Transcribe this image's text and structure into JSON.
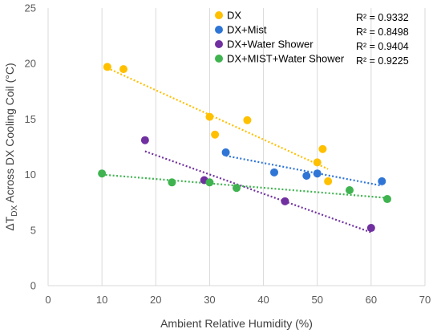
{
  "chart_data": {
    "type": "scatter",
    "xlabel": "Ambient Relative Humidity (%)",
    "ylabel": {
      "prefix": "ΔT",
      "subscript": "DX",
      "suffix": " Across DX Cooling Coil (°C)"
    },
    "xlim": [
      0,
      70
    ],
    "ylim": [
      0,
      25
    ],
    "xticks": [
      "0",
      "10",
      "20",
      "30",
      "40",
      "50",
      "60",
      "70"
    ],
    "yticks": [
      "0",
      "5",
      "10",
      "15",
      "20",
      "25"
    ],
    "grid": "vertical",
    "legend_position": "top-right",
    "series": [
      {
        "name": "DX",
        "color": "#FFC000",
        "points": [
          [
            11,
            19.7
          ],
          [
            14,
            19.5
          ],
          [
            30,
            15.2
          ],
          [
            31,
            13.6
          ],
          [
            37,
            14.9
          ],
          [
            50,
            11.1
          ],
          [
            51,
            12.3
          ],
          [
            52,
            9.4
          ]
        ],
        "trendline": [
          [
            11,
            19.6
          ],
          [
            52,
            10.5
          ]
        ],
        "r2": "R² = 0.9332"
      },
      {
        "name": "DX+Mist",
        "color": "#2F75D6",
        "points": [
          [
            33,
            12.0
          ],
          [
            42,
            10.2
          ],
          [
            48,
            9.9
          ],
          [
            50,
            10.1
          ],
          [
            62,
            9.4
          ]
        ],
        "trendline": [
          [
            33,
            11.7
          ],
          [
            62,
            9.0
          ]
        ],
        "r2": "R² = 0.8498"
      },
      {
        "name": "DX+Water Shower",
        "color": "#7030A0",
        "points": [
          [
            18,
            13.1
          ],
          [
            29,
            9.5
          ],
          [
            44,
            7.6
          ],
          [
            60,
            5.2
          ]
        ],
        "trendline": [
          [
            18,
            12.1
          ],
          [
            60,
            4.8
          ]
        ],
        "r2": "R² = 0.9404"
      },
      {
        "name": "DX+MIST+Water Shower",
        "color": "#3FB34F",
        "points": [
          [
            10,
            10.1
          ],
          [
            23,
            9.3
          ],
          [
            30,
            9.3
          ],
          [
            35,
            8.8
          ],
          [
            56,
            8.6
          ],
          [
            63,
            7.8
          ]
        ],
        "trendline": [
          [
            10,
            10.0
          ],
          [
            63,
            7.9
          ]
        ],
        "r2": "R² = 0.9225"
      }
    ]
  }
}
